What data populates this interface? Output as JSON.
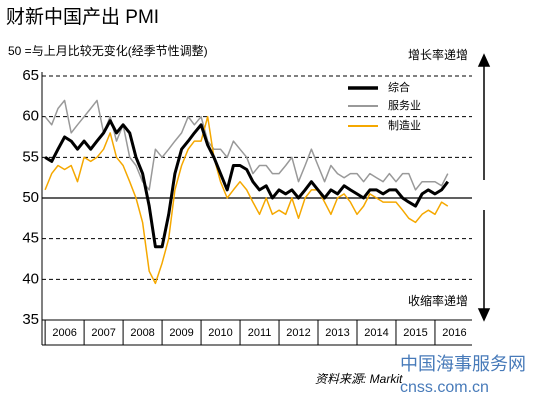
{
  "chart_data": {
    "type": "line",
    "title": "财新中国产出 PMI",
    "subtitle": "50 =与上月比较无变化(经季节性调整)",
    "annotations": {
      "top": "增长率递增",
      "bottom": "收缩率递增",
      "source": "资料来源: Markit"
    },
    "watermark": {
      "name": "中国海事服务网",
      "url": "cnss.com.cn"
    },
    "x": [
      2006,
      2006.17,
      2006.33,
      2006.5,
      2006.67,
      2006.83,
      2007,
      2007.17,
      2007.33,
      2007.5,
      2007.67,
      2007.83,
      2008,
      2008.17,
      2008.33,
      2008.5,
      2008.67,
      2008.83,
      2009,
      2009.17,
      2009.33,
      2009.5,
      2009.67,
      2009.83,
      2010,
      2010.17,
      2010.33,
      2010.5,
      2010.67,
      2010.83,
      2011,
      2011.17,
      2011.33,
      2011.5,
      2011.67,
      2011.83,
      2012,
      2012.17,
      2012.33,
      2012.5,
      2012.67,
      2012.83,
      2013,
      2013.17,
      2013.33,
      2013.5,
      2013.67,
      2013.83,
      2014,
      2014.17,
      2014.33,
      2014.5,
      2014.67,
      2014.83,
      2015,
      2015.17,
      2015.33,
      2015.5,
      2015.67,
      2015.83,
      2016,
      2016.17,
      2016.33
    ],
    "series": [
      {
        "name": "综合",
        "color": "#000000",
        "width": 3,
        "values": [
          55,
          54.5,
          56,
          57.5,
          57,
          56,
          57,
          56,
          57,
          58,
          59.5,
          58,
          59,
          58,
          55,
          53,
          49,
          44,
          44,
          48,
          53,
          56,
          57,
          58,
          59,
          56.5,
          55,
          53,
          51,
          54,
          54,
          53.5,
          52,
          51,
          51.5,
          50,
          51,
          50.5,
          51,
          50,
          51,
          52,
          51,
          50,
          51,
          50.5,
          51.5,
          51,
          50.5,
          50,
          51,
          51,
          50.5,
          51,
          51,
          50,
          49.5,
          49,
          50.5,
          51,
          50.5,
          51,
          52
        ]
      },
      {
        "name": "服务业",
        "color": "#999999",
        "width": 1.5,
        "values": [
          60,
          59,
          61,
          62,
          58,
          59,
          60,
          61,
          62,
          58,
          60,
          57,
          59,
          55,
          54,
          52,
          51,
          56,
          55,
          56,
          57,
          58,
          60,
          59,
          60,
          57,
          56,
          56,
          55,
          57,
          56,
          55,
          53,
          54,
          54,
          53,
          53,
          54,
          55,
          52,
          54,
          56,
          54,
          52,
          54,
          53,
          52.5,
          53,
          53,
          52,
          53,
          52.5,
          52,
          53,
          52,
          53,
          53,
          51,
          52,
          52,
          52,
          51.5,
          53
        ]
      },
      {
        "name": "制造业",
        "color": "#f5a800",
        "width": 1.5,
        "values": [
          51,
          53,
          54,
          53.5,
          54,
          52,
          55,
          54.5,
          55,
          56,
          58,
          55,
          54,
          52,
          50,
          47,
          41,
          39.5,
          42,
          45,
          51,
          54,
          56,
          57,
          57,
          60,
          55,
          52,
          50,
          51,
          52,
          51,
          49.5,
          48,
          50,
          48,
          48.5,
          48,
          50,
          47.5,
          50,
          51,
          51,
          49.5,
          48,
          50,
          50.5,
          49.5,
          48,
          49,
          50.5,
          50,
          49.5,
          49.5,
          49.5,
          48.5,
          47.5,
          47,
          48,
          48.5,
          48,
          49.5,
          49
        ]
      }
    ],
    "xlim": [
      2005.92,
      2016.95
    ],
    "xticks": [
      {
        "value": 2006,
        "label": "2006"
      },
      {
        "value": 2007,
        "label": "2007"
      },
      {
        "value": 2008,
        "label": "2008"
      },
      {
        "value": 2009,
        "label": "2009"
      },
      {
        "value": 2010,
        "label": "2010"
      },
      {
        "value": 2011,
        "label": "2011"
      },
      {
        "value": 2012,
        "label": "2012"
      },
      {
        "value": 2013,
        "label": "2013"
      },
      {
        "value": 2014,
        "label": "2014"
      },
      {
        "value": 2015,
        "label": "2015"
      },
      {
        "value": 2016,
        "label": "2016"
      }
    ],
    "ylim": [
      35,
      65
    ],
    "yticks": [
      35,
      40,
      45,
      50,
      55,
      60,
      65
    ],
    "reference_line": 50,
    "grid": true
  }
}
